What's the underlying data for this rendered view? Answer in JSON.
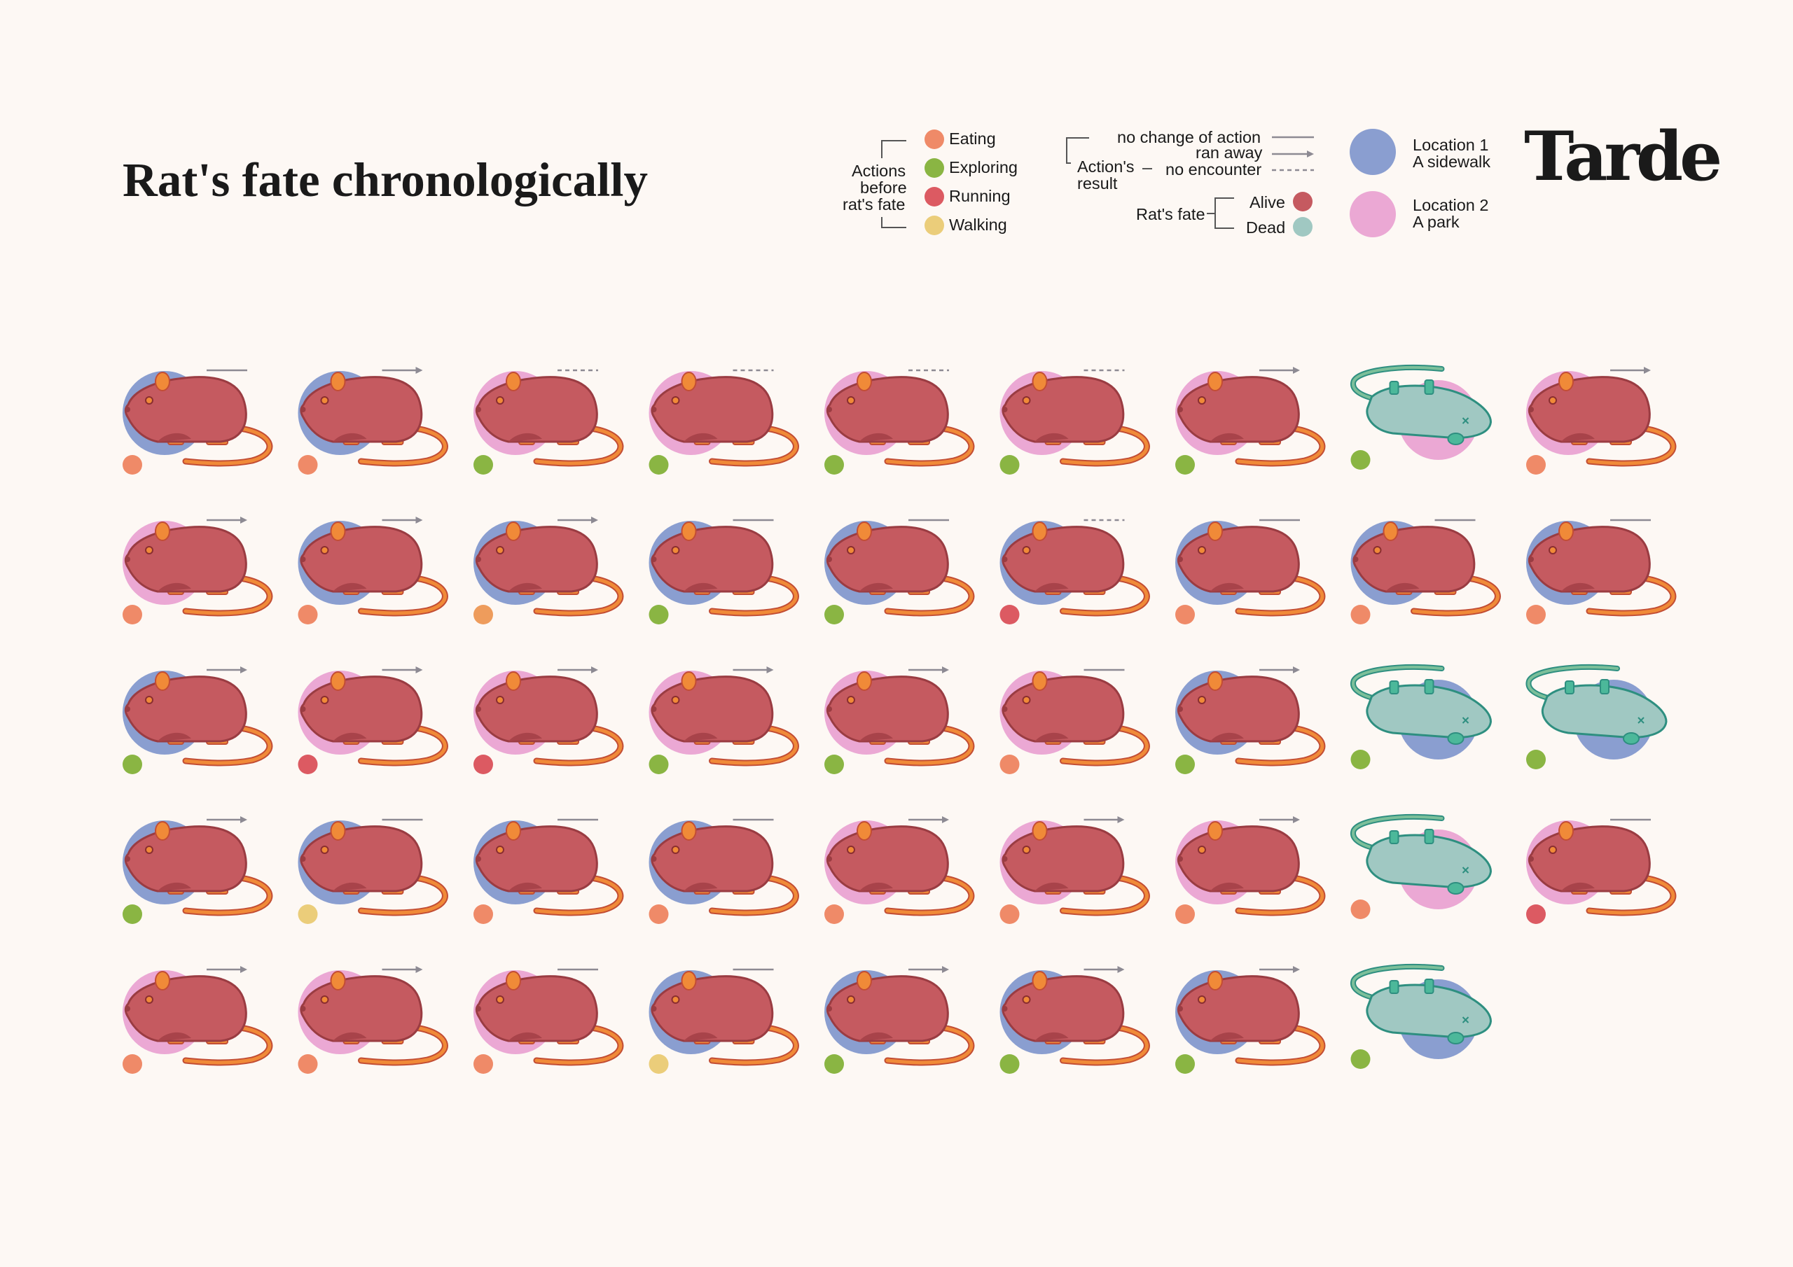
{
  "title": "Rat's fate chronologically",
  "logo": "Tarde",
  "legend": {
    "actions": {
      "heading": [
        "Actions",
        "before",
        "rat's fate"
      ],
      "items": [
        {
          "label": "Eating",
          "color": "#ef8a68"
        },
        {
          "label": "Exploring",
          "color": "#8ab543"
        },
        {
          "label": "Running",
          "color": "#dc5a62"
        },
        {
          "label": "Walking",
          "color": "#ebcd7a"
        }
      ]
    },
    "results": {
      "heading": [
        "Action's",
        "result"
      ],
      "items": [
        {
          "label": "no change of action",
          "style": "solid"
        },
        {
          "label": "ran away",
          "style": "arrow"
        },
        {
          "label": "no encounter",
          "style": "dashed"
        }
      ]
    },
    "fate": {
      "heading": "Rat's fate",
      "items": [
        {
          "label": "Alive",
          "color": "#c55a60"
        },
        {
          "label": "Dead",
          "color": "#a0c8c2"
        }
      ]
    },
    "locations": [
      {
        "line1": "Location 1",
        "line2": "A sidewalk",
        "color": "#8a9ed0"
      },
      {
        "line1": "Location 2",
        "line2": "A park",
        "color": "#eba8d4"
      }
    ]
  },
  "colors": {
    "action": {
      "Eating": "#ef8a68",
      "Exploring": "#8ab543",
      "Running": "#dc5a62",
      "Walking": "#ebcd7a",
      "Other": "#ee9c5c"
    },
    "location": {
      "sidewalk": "#8a9ed0",
      "park": "#eba8d4"
    }
  },
  "rats": [
    {
      "location": "sidewalk",
      "action": "Eating",
      "result": "no change of action",
      "fate": "Alive"
    },
    {
      "location": "sidewalk",
      "action": "Eating",
      "result": "ran away",
      "fate": "Alive"
    },
    {
      "location": "park",
      "action": "Exploring",
      "result": "no encounter",
      "fate": "Alive"
    },
    {
      "location": "park",
      "action": "Exploring",
      "result": "no encounter",
      "fate": "Alive"
    },
    {
      "location": "park",
      "action": "Exploring",
      "result": "no encounter",
      "fate": "Alive"
    },
    {
      "location": "park",
      "action": "Exploring",
      "result": "no encounter",
      "fate": "Alive"
    },
    {
      "location": "park",
      "action": "Exploring",
      "result": "ran away",
      "fate": "Alive"
    },
    {
      "location": "park",
      "action": "Exploring",
      "result": "",
      "fate": "Dead"
    },
    {
      "location": "park",
      "action": "Eating",
      "result": "ran away",
      "fate": "Alive"
    },
    {
      "location": "park",
      "action": "Eating",
      "result": "ran away",
      "fate": "Alive"
    },
    {
      "location": "sidewalk",
      "action": "Eating",
      "result": "ran away",
      "fate": "Alive"
    },
    {
      "location": "sidewalk",
      "action": "Other",
      "result": "ran away",
      "fate": "Alive"
    },
    {
      "location": "sidewalk",
      "action": "Exploring",
      "result": "no change of action",
      "fate": "Alive"
    },
    {
      "location": "sidewalk",
      "action": "Exploring",
      "result": "no change of action",
      "fate": "Alive"
    },
    {
      "location": "sidewalk",
      "action": "Running",
      "result": "no encounter",
      "fate": "Alive"
    },
    {
      "location": "sidewalk",
      "action": "Eating",
      "result": "no change of action",
      "fate": "Alive"
    },
    {
      "location": "sidewalk",
      "action": "Eating",
      "result": "no change of action",
      "fate": "Alive"
    },
    {
      "location": "sidewalk",
      "action": "Eating",
      "result": "no change of action",
      "fate": "Alive"
    },
    {
      "location": "sidewalk",
      "action": "Exploring",
      "result": "ran away",
      "fate": "Alive"
    },
    {
      "location": "park",
      "action": "Running",
      "result": "ran away",
      "fate": "Alive"
    },
    {
      "location": "park",
      "action": "Running",
      "result": "ran away",
      "fate": "Alive"
    },
    {
      "location": "park",
      "action": "Exploring",
      "result": "ran away",
      "fate": "Alive"
    },
    {
      "location": "park",
      "action": "Exploring",
      "result": "ran away",
      "fate": "Alive"
    },
    {
      "location": "park",
      "action": "Eating",
      "result": "no change of action",
      "fate": "Alive"
    },
    {
      "location": "sidewalk",
      "action": "Exploring",
      "result": "ran away",
      "fate": "Alive"
    },
    {
      "location": "sidewalk",
      "action": "Exploring",
      "result": "",
      "fate": "Dead"
    },
    {
      "location": "sidewalk",
      "action": "Exploring",
      "result": "",
      "fate": "Dead"
    },
    {
      "location": "sidewalk",
      "action": "Exploring",
      "result": "ran away",
      "fate": "Alive"
    },
    {
      "location": "sidewalk",
      "action": "Walking",
      "result": "no change of action",
      "fate": "Alive"
    },
    {
      "location": "sidewalk",
      "action": "Eating",
      "result": "no change of action",
      "fate": "Alive"
    },
    {
      "location": "sidewalk",
      "action": "Eating",
      "result": "no change of action",
      "fate": "Alive"
    },
    {
      "location": "park",
      "action": "Eating",
      "result": "ran away",
      "fate": "Alive"
    },
    {
      "location": "park",
      "action": "Eating",
      "result": "ran away",
      "fate": "Alive"
    },
    {
      "location": "park",
      "action": "Eating",
      "result": "ran away",
      "fate": "Alive"
    },
    {
      "location": "park",
      "action": "Eating",
      "result": "",
      "fate": "Dead"
    },
    {
      "location": "park",
      "action": "Running",
      "result": "no change of action",
      "fate": "Alive"
    },
    {
      "location": "park",
      "action": "Eating",
      "result": "ran away",
      "fate": "Alive"
    },
    {
      "location": "park",
      "action": "Eating",
      "result": "ran away",
      "fate": "Alive"
    },
    {
      "location": "park",
      "action": "Eating",
      "result": "no change of action",
      "fate": "Alive"
    },
    {
      "location": "sidewalk",
      "action": "Walking",
      "result": "no change of action",
      "fate": "Alive"
    },
    {
      "location": "sidewalk",
      "action": "Exploring",
      "result": "ran away",
      "fate": "Alive"
    },
    {
      "location": "sidewalk",
      "action": "Exploring",
      "result": "ran away",
      "fate": "Alive"
    },
    {
      "location": "sidewalk",
      "action": "Exploring",
      "result": "ran away",
      "fate": "Alive"
    },
    {
      "location": "sidewalk",
      "action": "Exploring",
      "result": "",
      "fate": "Dead"
    }
  ]
}
